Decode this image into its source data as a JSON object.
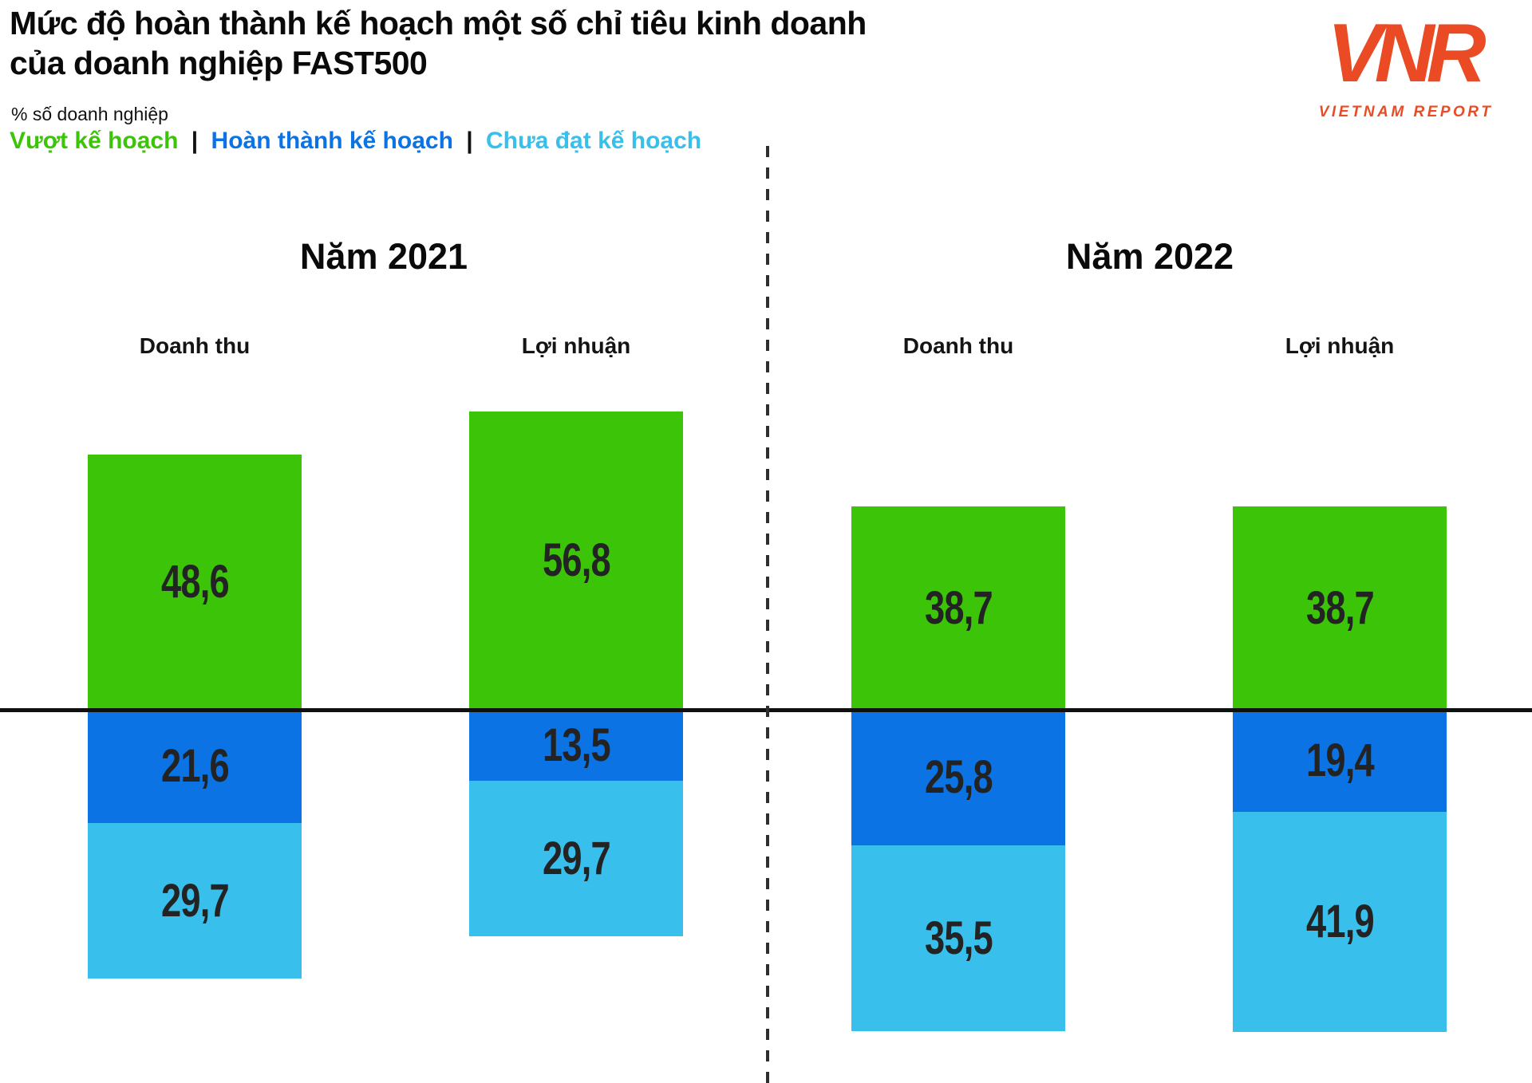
{
  "header": {
    "title_line1": "Mức độ hoàn thành kế hoạch một số chỉ tiêu kinh doanh",
    "title_line2": "của doanh nghiệp FAST500",
    "subtitle": "% số doanh nghiệp"
  },
  "legend": {
    "separator": "|",
    "items": [
      {
        "label": "Vượt kế hoạch",
        "color": "#3cc408"
      },
      {
        "label": "Hoàn thành kế hoạch",
        "color": "#0b73e3"
      },
      {
        "label": "Chưa đạt kế hoạch",
        "color": "#39bfec"
      }
    ]
  },
  "logo": {
    "mark": "VNR",
    "caption": "VIETNAM REPORT",
    "color": "#ea4b25"
  },
  "chart_data": {
    "type": "bar",
    "subtype": "diverging-stacked-percentage",
    "title": "Mức độ hoàn thành kế hoạch một số chỉ tiêu kinh doanh của doanh nghiệp FAST500",
    "unit_label": "% số doanh nghiệp",
    "baseline_value": 0,
    "legend_position": "top-left",
    "grid": false,
    "series": [
      {
        "name": "Vượt kế hoạch",
        "color": "#3cc408",
        "direction": "up"
      },
      {
        "name": "Hoàn thành kế hoạch",
        "color": "#0b73e3",
        "direction": "down"
      },
      {
        "name": "Chưa đạt kế hoạch",
        "color": "#39bfec",
        "direction": "down"
      }
    ],
    "panels": [
      {
        "title": "Năm 2021",
        "bars": [
          {
            "category": "Doanh thu",
            "values": [
              48.6,
              21.6,
              29.7
            ],
            "labels": [
              "48,6",
              "21,6",
              "29,7"
            ]
          },
          {
            "category": "Lợi nhuận",
            "values": [
              56.8,
              13.5,
              29.7
            ],
            "labels": [
              "56,8",
              "13,5",
              "29,7"
            ]
          }
        ]
      },
      {
        "title": "Năm 2022",
        "bars": [
          {
            "category": "Doanh thu",
            "values": [
              38.7,
              25.8,
              35.5
            ],
            "labels": [
              "38,7",
              "25,8",
              "35,5"
            ]
          },
          {
            "category": "Lợi nhuận",
            "values": [
              38.7,
              19.4,
              41.9
            ],
            "labels": [
              "38,7",
              "19,4",
              "41,9"
            ]
          }
        ]
      }
    ]
  }
}
